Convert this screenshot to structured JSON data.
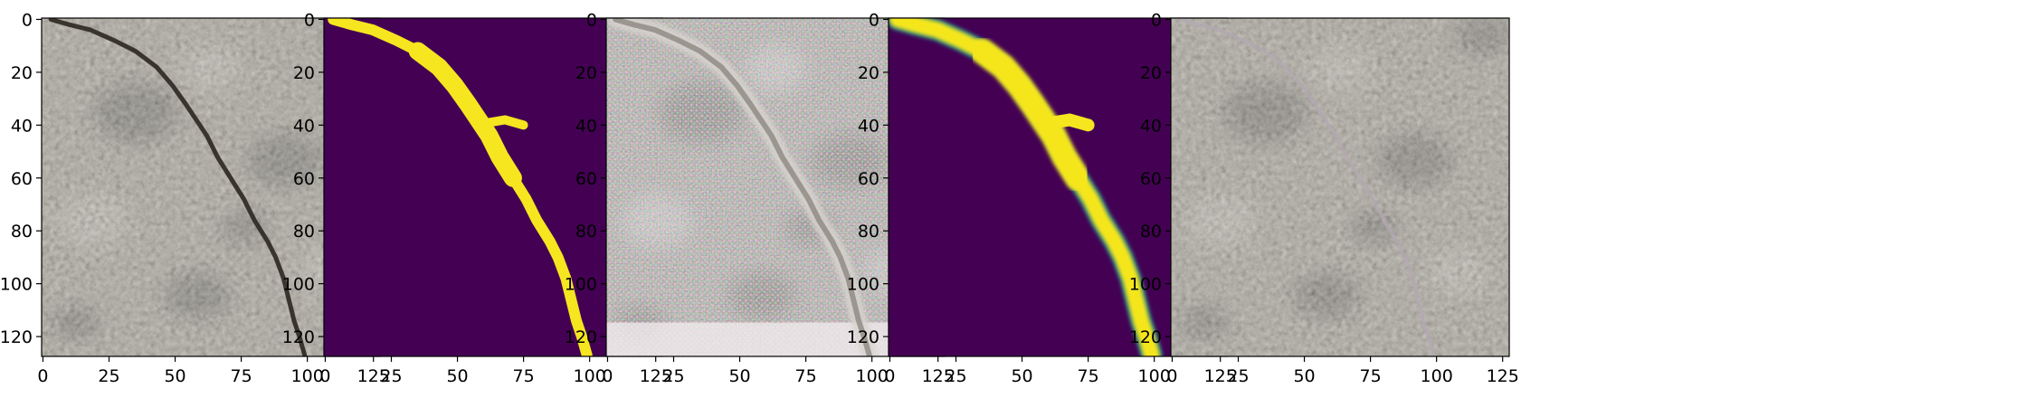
{
  "figure": {
    "panel_count": 5,
    "panels": [
      {
        "content": "crack-photo-original",
        "palette": {
          "base": "#a29c8c",
          "dark": "#504c44",
          "light": "#c7c2b4",
          "crack": "#2c2720"
        }
      },
      {
        "content": "binary-mask",
        "palette": {
          "background": "#440154",
          "foreground": "#f5e61f"
        }
      },
      {
        "content": "generated-noisy-image",
        "palette": {
          "base": "#b9b3aa",
          "dark": "#6f6a62",
          "light": "#e9e6e1",
          "crack": "#8d8781"
        }
      },
      {
        "content": "soft-probability-mask",
        "palette": {
          "background": "#440154",
          "mid": "#21908d",
          "foreground": "#f5e61f"
        }
      },
      {
        "content": "reconstructed-photo",
        "palette": {
          "base": "#a39d8d",
          "dark": "#524e46",
          "light": "#c6c1b3",
          "crack": "#b3a8b3"
        }
      }
    ]
  },
  "chart_data": {
    "type": "heatmap",
    "x_ticks": [
      "0",
      "25",
      "50",
      "75",
      "100",
      "125"
    ],
    "y_ticks": [
      "0",
      "20",
      "40",
      "60",
      "80",
      "100",
      "120"
    ],
    "xlim": [
      -0.5,
      127.5
    ],
    "ylim": [
      127.5,
      -0.5
    ],
    "crack_path": [
      [
        3,
        0
      ],
      [
        10,
        2
      ],
      [
        18,
        4
      ],
      [
        27,
        8
      ],
      [
        35,
        12
      ],
      [
        43,
        18
      ],
      [
        49,
        25
      ],
      [
        54,
        32
      ],
      [
        58,
        38
      ],
      [
        62,
        44
      ],
      [
        66,
        52
      ],
      [
        71,
        60
      ],
      [
        76,
        68
      ],
      [
        80,
        76
      ],
      [
        85,
        84
      ],
      [
        88,
        90
      ],
      [
        91,
        98
      ],
      [
        93,
        106
      ],
      [
        95,
        114
      ],
      [
        97,
        120
      ],
      [
        99,
        127
      ]
    ],
    "mask_branch": [
      [
        62,
        39
      ],
      [
        68,
        38
      ],
      [
        75,
        40
      ]
    ]
  }
}
